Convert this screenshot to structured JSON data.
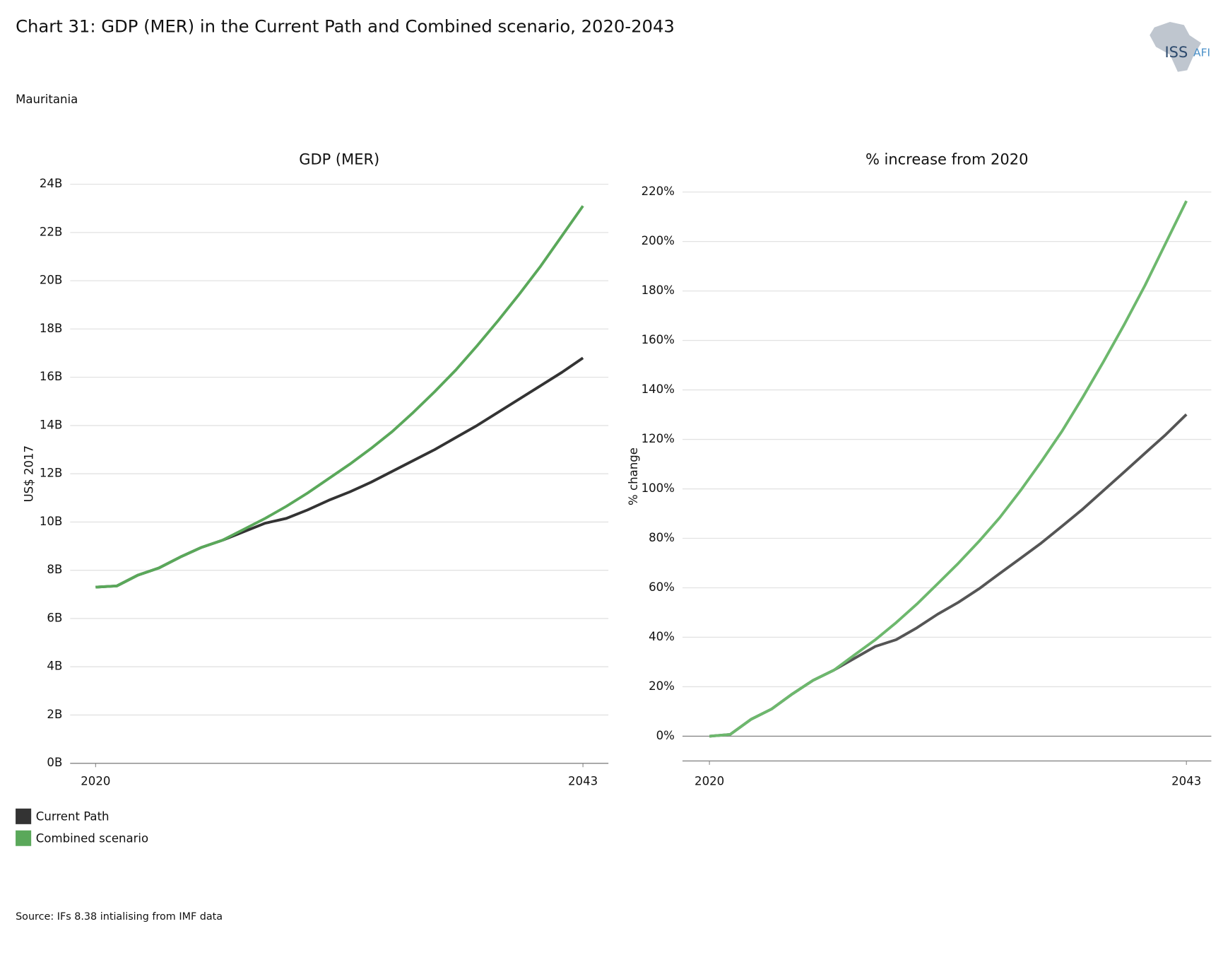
{
  "title": "Chart 31: GDP (MER) in the Current Path and Combined scenario, 2020-2043",
  "subtitle": "Mauritania",
  "source": "Source: IFs 8.38 intialising from IMF data",
  "logo": {
    "left": "ISS",
    "right": "AFI"
  },
  "chart_data": [
    {
      "type": "line",
      "title": "GDP (MER)",
      "y_label": "US$ 2017",
      "x": [
        2020,
        2021,
        2022,
        2023,
        2024,
        2025,
        2026,
        2027,
        2028,
        2029,
        2030,
        2031,
        2032,
        2033,
        2034,
        2035,
        2036,
        2037,
        2038,
        2039,
        2040,
        2041,
        2042,
        2043
      ],
      "xlim": [
        2018.8,
        2044.2
      ],
      "xticks": [
        2020,
        2043
      ],
      "ylim": [
        0,
        24
      ],
      "yticks": [
        {
          "value": 0,
          "label": "0B"
        },
        {
          "value": 2,
          "label": "2B"
        },
        {
          "value": 4,
          "label": "4B"
        },
        {
          "value": 6,
          "label": "6B"
        },
        {
          "value": 8,
          "label": "8B"
        },
        {
          "value": 10,
          "label": "10B"
        },
        {
          "value": 12,
          "label": "12B"
        },
        {
          "value": 14,
          "label": "14B"
        },
        {
          "value": 16,
          "label": "16B"
        },
        {
          "value": 18,
          "label": "18B"
        },
        {
          "value": 20,
          "label": "20B"
        },
        {
          "value": 22,
          "label": "22B"
        },
        {
          "value": 24,
          "label": "24B"
        }
      ],
      "grid": true,
      "series": [
        {
          "name": "Current Path",
          "color": "#333333",
          "values": [
            7.3,
            7.35,
            7.8,
            8.1,
            8.55,
            8.95,
            9.25,
            9.6,
            9.95,
            10.15,
            10.5,
            10.9,
            11.25,
            11.65,
            12.1,
            12.55,
            13.0,
            13.5,
            14.0,
            14.55,
            15.1,
            15.65,
            16.2,
            16.8
          ]
        },
        {
          "name": "Combined scenario",
          "color": "#5aa85a",
          "values": [
            7.3,
            7.35,
            7.8,
            8.1,
            8.55,
            8.95,
            9.25,
            9.7,
            10.15,
            10.65,
            11.2,
            11.8,
            12.4,
            13.05,
            13.75,
            14.55,
            15.4,
            16.3,
            17.3,
            18.35,
            19.45,
            20.6,
            21.85,
            23.1
          ]
        }
      ]
    },
    {
      "type": "line",
      "title": "% increase from 2020",
      "y_label": "% change",
      "x": [
        2020,
        2021,
        2022,
        2023,
        2024,
        2025,
        2026,
        2027,
        2028,
        2029,
        2030,
        2031,
        2032,
        2033,
        2034,
        2035,
        2036,
        2037,
        2038,
        2039,
        2040,
        2041,
        2042,
        2043
      ],
      "xlim": [
        2018.7,
        2044.2
      ],
      "xticks": [
        2020,
        2043
      ],
      "ylim": [
        -10,
        220
      ],
      "yticks": [
        {
          "value": 0,
          "label": "0%"
        },
        {
          "value": 20,
          "label": "20%"
        },
        {
          "value": 40,
          "label": "40%"
        },
        {
          "value": 60,
          "label": "60%"
        },
        {
          "value": 80,
          "label": "80%"
        },
        {
          "value": 100,
          "label": "100%"
        },
        {
          "value": 120,
          "label": "120%"
        },
        {
          "value": 140,
          "label": "140%"
        },
        {
          "value": 160,
          "label": "160%"
        },
        {
          "value": 180,
          "label": "180%"
        },
        {
          "value": 200,
          "label": "200%"
        },
        {
          "value": 220,
          "label": "220%"
        }
      ],
      "grid": true,
      "series": [
        {
          "name": "Current Path",
          "color": "#555555",
          "values": [
            0,
            0.7,
            6.8,
            11.0,
            17.1,
            22.6,
            26.7,
            31.5,
            36.3,
            39.0,
            43.8,
            49.3,
            54.1,
            59.6,
            65.8,
            71.9,
            78.1,
            84.9,
            91.8,
            99.3,
            106.8,
            114.4,
            121.9,
            130.1
          ]
        },
        {
          "name": "Combined scenario",
          "color": "#6db86d",
          "values": [
            0,
            0.7,
            6.8,
            11.0,
            17.1,
            22.6,
            26.7,
            32.9,
            39.0,
            45.9,
            53.4,
            61.6,
            69.9,
            78.8,
            88.4,
            99.3,
            111.0,
            123.3,
            137.0,
            151.4,
            166.4,
            182.2,
            199.3,
            216.4
          ]
        }
      ]
    }
  ]
}
